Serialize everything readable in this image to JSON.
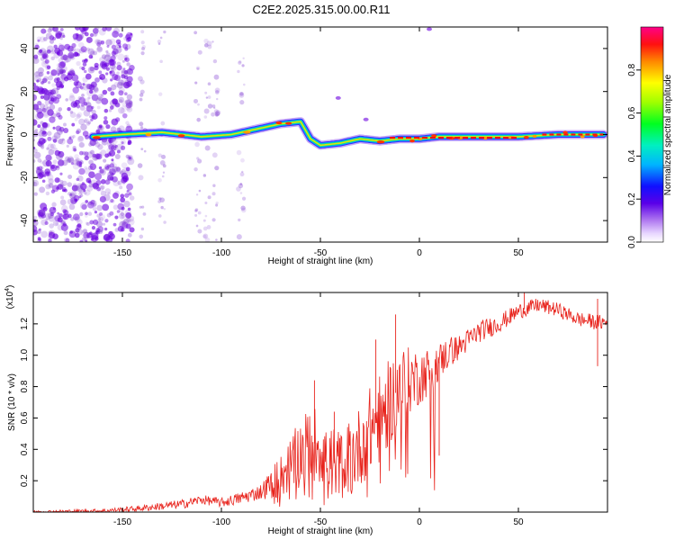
{
  "title": "C2E2.2025.315.00.00.R11",
  "colors": {
    "trace": "#e8231c",
    "axis": "#000000",
    "cloud": "#8a4dd6",
    "cloud_dark": "#6a00e0"
  },
  "chart_data": [
    {
      "type": "heatmap",
      "name": "spectrogram",
      "xlabel": "Height of straight line (km)",
      "ylabel": "Frequency (Hz)",
      "xlim": [
        -195,
        95
      ],
      "ylim": [
        -50,
        50
      ],
      "xticks": [
        -150,
        -100,
        -50,
        0,
        50
      ],
      "yticks": [
        -40,
        -20,
        0,
        20,
        40
      ],
      "ridge": [
        [
          -165,
          -1
        ],
        [
          -150,
          0
        ],
        [
          -130,
          1
        ],
        [
          -110,
          -1
        ],
        [
          -95,
          0
        ],
        [
          -80,
          3
        ],
        [
          -70,
          5
        ],
        [
          -60,
          6
        ],
        [
          -55,
          -2
        ],
        [
          -50,
          -5
        ],
        [
          -40,
          -4
        ],
        [
          -30,
          -2
        ],
        [
          -20,
          -3
        ],
        [
          -10,
          -2
        ],
        [
          0,
          -2
        ],
        [
          10,
          -1
        ],
        [
          30,
          -1
        ],
        [
          50,
          -1
        ],
        [
          70,
          0
        ],
        [
          93,
          0
        ]
      ],
      "colorbar": {
        "label": "Normalized spectral amplitude",
        "range": [
          0,
          1
        ],
        "ticks": [
          0.0,
          0.2,
          0.4,
          0.6,
          0.8
        ],
        "tick_labels": [
          "0.0",
          "0.2",
          "0.4",
          "0.6",
          "0.8"
        ]
      }
    },
    {
      "type": "line",
      "name": "snr",
      "xlabel": "Height of straight line (km)",
      "ylabel": "SNR (10 * v/v)",
      "scale_label": "(x10",
      "scale_exponent": "4",
      "xlim": [
        -195,
        95
      ],
      "ylim": [
        0,
        14000
      ],
      "xticks": [
        -150,
        -100,
        -50,
        0,
        50
      ],
      "yticks": [
        2000,
        4000,
        6000,
        8000,
        10000,
        12000
      ],
      "ytick_labels": [
        "0.2",
        "0.4",
        "0.6",
        "0.8",
        "1.0",
        "1.2"
      ],
      "envelope": [
        [
          -195,
          20
        ],
        [
          -160,
          80
        ],
        [
          -140,
          250
        ],
        [
          -120,
          500
        ],
        [
          -110,
          800
        ],
        [
          -100,
          600
        ],
        [
          -90,
          900
        ],
        [
          -80,
          1300
        ],
        [
          -75,
          1800
        ],
        [
          -70,
          2300
        ],
        [
          -65,
          3000
        ],
        [
          -60,
          3800
        ],
        [
          -55,
          4500
        ],
        [
          -50,
          4200
        ],
        [
          -45,
          3200
        ],
        [
          -40,
          3000
        ],
        [
          -35,
          3500
        ],
        [
          -30,
          4200
        ],
        [
          -25,
          5200
        ],
        [
          -20,
          6000
        ],
        [
          -15,
          7000
        ],
        [
          -10,
          8000
        ],
        [
          -5,
          8400
        ],
        [
          0,
          8600
        ],
        [
          5,
          9000
        ],
        [
          10,
          9600
        ],
        [
          15,
          10200
        ],
        [
          20,
          10500
        ],
        [
          25,
          11000
        ],
        [
          30,
          11500
        ],
        [
          40,
          12000
        ],
        [
          50,
          12800
        ],
        [
          60,
          13200
        ],
        [
          70,
          12900
        ],
        [
          80,
          12300
        ],
        [
          90,
          12100
        ],
        [
          95,
          12100
        ]
      ],
      "noise": [
        [
          -195,
          80
        ],
        [
          -150,
          150
        ],
        [
          -120,
          300
        ],
        [
          -100,
          300
        ],
        [
          -80,
          500
        ],
        [
          -70,
          1400
        ],
        [
          -60,
          2200
        ],
        [
          -50,
          2500
        ],
        [
          -40,
          2200
        ],
        [
          -30,
          2600
        ],
        [
          -20,
          3000
        ],
        [
          -10,
          2500
        ],
        [
          0,
          1800
        ],
        [
          10,
          1200
        ],
        [
          20,
          800
        ],
        [
          30,
          700
        ],
        [
          50,
          500
        ],
        [
          70,
          450
        ],
        [
          95,
          500
        ]
      ],
      "spikes": [
        [
          -53,
          8400
        ],
        [
          -43,
          6400
        ],
        [
          -22,
          11000
        ],
        [
          -12,
          12600
        ],
        [
          10,
          3600
        ],
        [
          53,
          14000
        ],
        [
          90,
          13600
        ],
        [
          90,
          9300
        ]
      ]
    }
  ]
}
